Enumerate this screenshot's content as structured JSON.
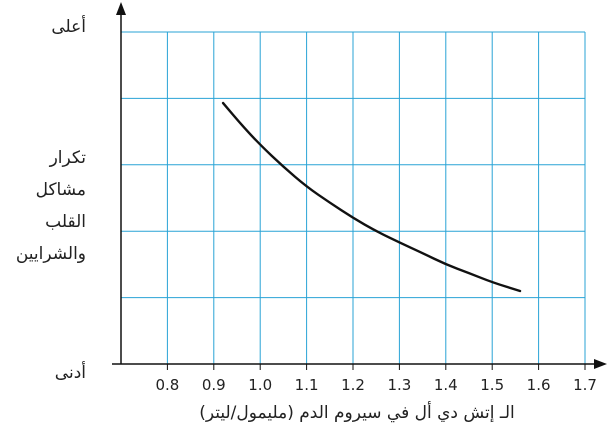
{
  "chart_data": {
    "type": "line",
    "title": "",
    "xlabel": "الـ إتش دي أل في سيروم الدم (مليمول/ليتر)",
    "ylabel_lines": [
      "تكرار",
      "مشاكل",
      "القلب",
      "والشرايين"
    ],
    "y_top_label": "أعلى",
    "y_bottom_label": "أدنى",
    "x_ticks": [
      "0.8",
      "0.9",
      "1.0",
      "1.1",
      "1.2",
      "1.3",
      "1.4",
      "1.5",
      "1.6",
      "1.7"
    ],
    "xlim": [
      0.7,
      1.7
    ],
    "ylim": [
      0,
      5
    ],
    "grid": true,
    "grid_color": "#29a3d6",
    "line_color": "#111111",
    "series": [
      {
        "x": [
          0.92,
          0.96,
          1.0,
          1.05,
          1.1,
          1.15,
          1.2,
          1.25,
          1.3,
          1.35,
          1.4,
          1.45,
          1.5,
          1.56
        ],
        "values": [
          3.93,
          3.6,
          3.3,
          2.97,
          2.67,
          2.43,
          2.2,
          2.0,
          1.83,
          1.67,
          1.5,
          1.37,
          1.23,
          1.1
        ]
      }
    ]
  }
}
